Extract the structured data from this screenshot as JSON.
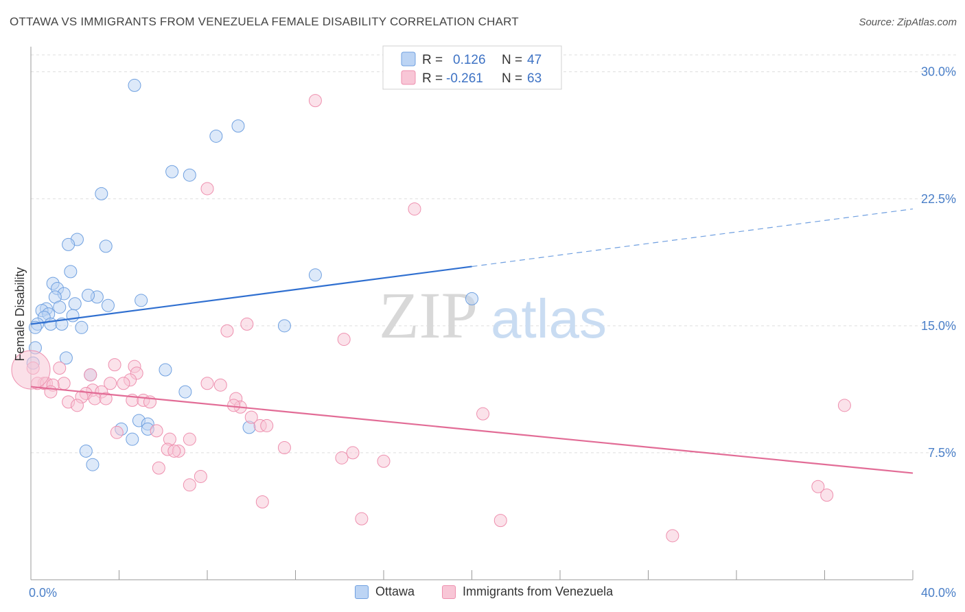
{
  "header": {
    "title": "OTTAWA VS IMMIGRANTS FROM VENEZUELA FEMALE DISABILITY CORRELATION CHART",
    "source": "Source: ZipAtlas.com"
  },
  "watermark": {
    "part1": "ZIP",
    "part2": "atlas"
  },
  "legend": {
    "r_label": "R =",
    "n_label": "N =",
    "rows": [
      {
        "r": "0.126",
        "n": "47",
        "color": "#6fa0e0"
      },
      {
        "r": "-0.261",
        "n": "63",
        "color": "#ee8fae"
      }
    ]
  },
  "bottom_legend": [
    "Ottawa",
    "Immigrants from Venezuela"
  ],
  "chart_data": {
    "type": "scatter",
    "title": "OTTAWA VS IMMIGRANTS FROM VENEZUELA FEMALE DISABILITY CORRELATION CHART",
    "xlabel": "",
    "ylabel": "Female Disability",
    "xlim": [
      0,
      40
    ],
    "ylim": [
      0,
      31
    ],
    "x_tick_labels": [
      "0.0%",
      "40.0%"
    ],
    "y_ticks": [
      7.5,
      15.0,
      22.5,
      30.0
    ],
    "y_tick_labels": [
      "7.5%",
      "15.0%",
      "22.5%",
      "30.0%"
    ],
    "grid": true,
    "legend_position": "top-center",
    "series": [
      {
        "name": "Ottawa",
        "color": "#6fa0e0",
        "fill": "#bcd4f4",
        "r": 0.126,
        "n": 47,
        "trend": {
          "x0": 0,
          "y0": 15.1,
          "x1": 20,
          "y1": 18.5,
          "dash_to_x": 40,
          "dash_to_y": 21.9
        },
        "points": [
          [
            4.7,
            29.2
          ],
          [
            9.4,
            26.8
          ],
          [
            8.4,
            26.2
          ],
          [
            6.4,
            24.1
          ],
          [
            7.2,
            23.9
          ],
          [
            3.2,
            22.8
          ],
          [
            2.1,
            20.1
          ],
          [
            1.7,
            19.8
          ],
          [
            3.4,
            19.7
          ],
          [
            1.8,
            18.2
          ],
          [
            12.9,
            18.0
          ],
          [
            1.0,
            17.5
          ],
          [
            1.2,
            17.2
          ],
          [
            1.5,
            16.9
          ],
          [
            1.1,
            16.7
          ],
          [
            3.0,
            16.7
          ],
          [
            2.6,
            16.8
          ],
          [
            5.0,
            16.5
          ],
          [
            20.0,
            16.6
          ],
          [
            2.0,
            16.3
          ],
          [
            3.5,
            16.2
          ],
          [
            1.3,
            16.1
          ],
          [
            0.7,
            16.0
          ],
          [
            0.5,
            15.9
          ],
          [
            0.8,
            15.7
          ],
          [
            0.6,
            15.5
          ],
          [
            1.9,
            15.6
          ],
          [
            0.3,
            15.1
          ],
          [
            0.9,
            15.1
          ],
          [
            1.4,
            15.1
          ],
          [
            11.5,
            15.0
          ],
          [
            2.3,
            14.9
          ],
          [
            0.2,
            14.9
          ],
          [
            0.2,
            13.7
          ],
          [
            1.6,
            13.1
          ],
          [
            0.1,
            12.8
          ],
          [
            6.1,
            12.4
          ],
          [
            2.7,
            12.1
          ],
          [
            7.0,
            11.1
          ],
          [
            4.9,
            9.4
          ],
          [
            5.3,
            9.2
          ],
          [
            5.3,
            8.9
          ],
          [
            4.1,
            8.9
          ],
          [
            9.9,
            9.0
          ],
          [
            4.6,
            8.3
          ],
          [
            2.5,
            7.6
          ],
          [
            2.8,
            6.8
          ]
        ]
      },
      {
        "name": "Immigrants from Venezuela",
        "color": "#ee8fae",
        "fill": "#f8c6d6",
        "r": -0.261,
        "n": 63,
        "trend": {
          "x0": 0,
          "y0": 11.4,
          "x1": 40,
          "y1": 6.3
        },
        "points": [
          [
            12.9,
            28.3
          ],
          [
            8.0,
            23.1
          ],
          [
            17.4,
            21.9
          ],
          [
            0.1,
            12.5
          ],
          [
            8.9,
            14.7
          ],
          [
            9.8,
            15.1
          ],
          [
            14.2,
            14.2
          ],
          [
            3.8,
            12.7
          ],
          [
            4.7,
            12.6
          ],
          [
            1.3,
            12.5
          ],
          [
            4.8,
            12.2
          ],
          [
            2.7,
            12.1
          ],
          [
            4.5,
            11.8
          ],
          [
            0.6,
            11.6
          ],
          [
            1.5,
            11.6
          ],
          [
            3.6,
            11.6
          ],
          [
            4.2,
            11.6
          ],
          [
            0.3,
            11.6
          ],
          [
            0.7,
            11.6
          ],
          [
            1.0,
            11.5
          ],
          [
            8.0,
            11.6
          ],
          [
            8.6,
            11.5
          ],
          [
            0.9,
            11.1
          ],
          [
            2.8,
            11.2
          ],
          [
            3.2,
            11.1
          ],
          [
            2.5,
            11.0
          ],
          [
            2.3,
            10.8
          ],
          [
            2.9,
            10.7
          ],
          [
            3.4,
            10.7
          ],
          [
            4.6,
            10.6
          ],
          [
            5.1,
            10.6
          ],
          [
            5.4,
            10.5
          ],
          [
            1.7,
            10.5
          ],
          [
            9.3,
            10.7
          ],
          [
            2.1,
            10.3
          ],
          [
            9.5,
            10.2
          ],
          [
            9.2,
            10.3
          ],
          [
            10.0,
            9.6
          ],
          [
            20.5,
            9.8
          ],
          [
            36.9,
            10.3
          ],
          [
            10.4,
            9.1
          ],
          [
            10.7,
            9.1
          ],
          [
            5.7,
            8.8
          ],
          [
            3.9,
            8.7
          ],
          [
            6.3,
            8.3
          ],
          [
            7.2,
            8.3
          ],
          [
            6.2,
            7.7
          ],
          [
            6.7,
            7.6
          ],
          [
            11.5,
            7.8
          ],
          [
            14.6,
            7.5
          ],
          [
            14.1,
            7.2
          ],
          [
            6.5,
            7.6
          ],
          [
            16.0,
            7.0
          ],
          [
            5.8,
            6.6
          ],
          [
            7.7,
            6.1
          ],
          [
            7.2,
            5.6
          ],
          [
            35.7,
            5.5
          ],
          [
            36.1,
            5.0
          ],
          [
            10.5,
            4.6
          ],
          [
            15.0,
            3.6
          ],
          [
            21.3,
            3.5
          ],
          [
            29.1,
            2.6
          ],
          [
            0.0,
            12.4
          ]
        ]
      }
    ]
  }
}
